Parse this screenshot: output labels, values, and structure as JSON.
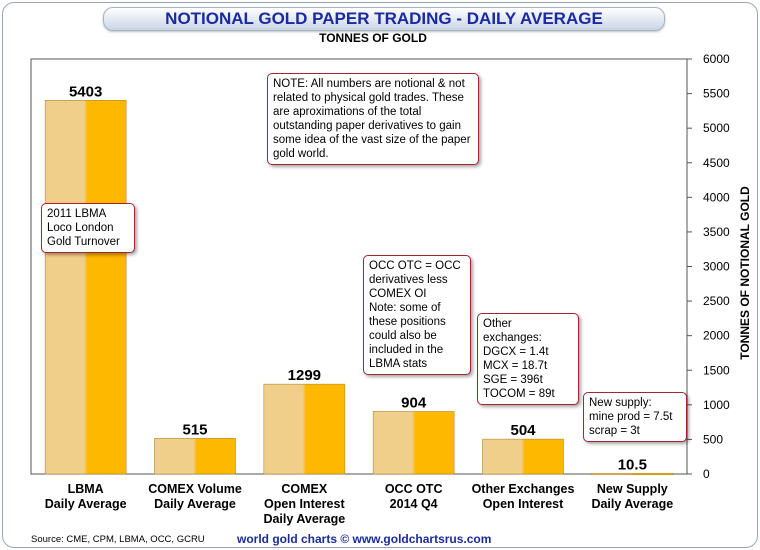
{
  "title": "NOTIONAL GOLD PAPER TRADING - DAILY AVERAGE",
  "subtitle": "TONNES OF GOLD",
  "source": "Source: CME, CPM, LBMA, OCC, GCRU",
  "watermark": "world gold charts © www.goldchartsrus.com",
  "colors": {
    "bar_light": "#f0cf8a",
    "bar_dark": "#ffb800",
    "note_border": "#a8242c",
    "title": "#1a2aa0"
  },
  "chart_data": {
    "type": "bar",
    "categories": [
      "LBMA\nDaily Average",
      "COMEX Volume\nDaily Average",
      "COMEX\nOpen Interest\nDaily Average",
      "OCC OTC\n2014 Q4",
      "Other Exchanges\nOpen Interest",
      "New Supply\nDaily Average"
    ],
    "values": [
      5403,
      515,
      1299,
      904,
      504,
      10.5
    ],
    "value_labels": [
      "5403",
      "515",
      "1299",
      "904",
      "504",
      "10.5"
    ],
    "ylabel": "TONNES OF NOTIONAL GOLD",
    "ylim": [
      0,
      6000
    ],
    "yticks": [
      0,
      500,
      1000,
      1500,
      2000,
      2500,
      3000,
      3500,
      4000,
      4500,
      5000,
      5500,
      6000
    ],
    "y_axis_side": "right",
    "grid": false
  },
  "notes": {
    "disclaimer": "NOTE: All numbers are notional & not related to physical gold trades. These are aproximations of the total outstanding paper derivatives to gain some idea of the vast size of the paper gold world.",
    "lbma": "2011 LBMA\nLoco London\nGold Turnover",
    "occ": "OCC OTC = OCC\nderivatives less\nCOMEX OI\nNote: some of\nthese positions\ncould also be\nincluded in the\nLBMA stats",
    "other": "Other\nexchanges:\nDGCX = 1.4t\nMCX = 18.7t\nSGE = 396t\nTOCOM = 89t",
    "supply": "New supply:\nmine prod = 7.5t\nscrap = 3t"
  }
}
